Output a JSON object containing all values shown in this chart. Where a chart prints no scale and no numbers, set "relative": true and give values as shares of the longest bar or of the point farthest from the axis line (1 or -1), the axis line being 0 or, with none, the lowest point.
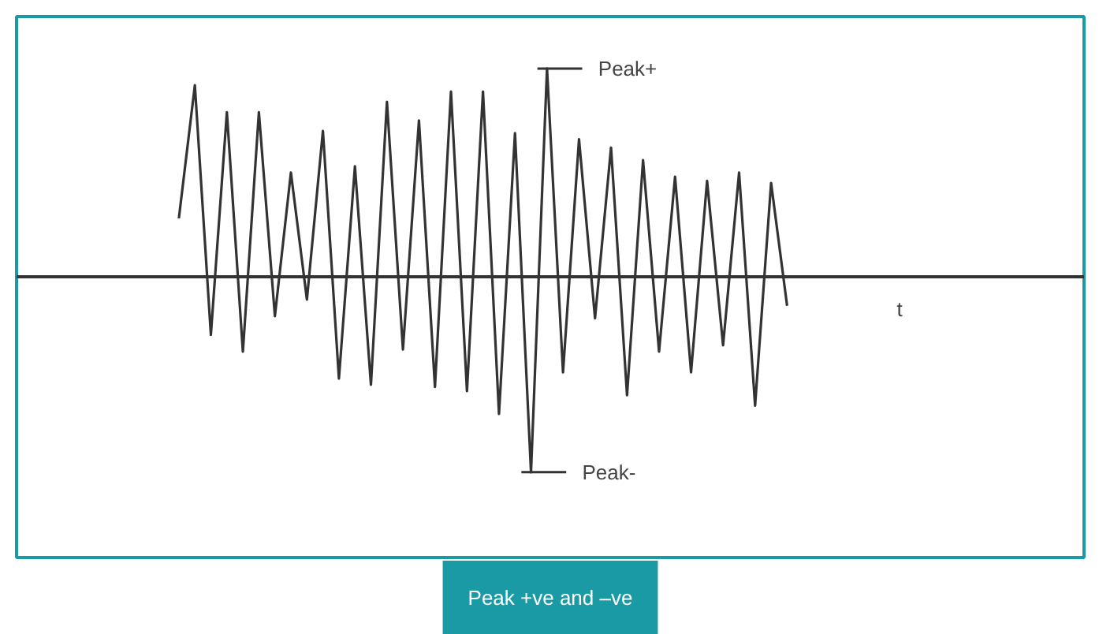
{
  "chart_data": {
    "type": "line",
    "relative": true,
    "title": "Peak +ve and –ve",
    "categories": [
      null,
      null,
      null,
      null,
      null,
      null,
      null,
      null,
      null,
      null,
      null,
      null,
      null,
      null,
      null,
      null,
      null,
      null,
      null,
      null,
      null,
      null,
      null,
      null,
      null,
      null,
      null,
      null,
      null,
      null,
      null,
      null,
      null,
      null,
      null,
      null,
      null,
      null,
      null
    ],
    "series": [
      {
        "color": "#333333",
        "values": [
          0.28,
          0.92,
          -0.28,
          0.79,
          -0.36,
          0.79,
          -0.19,
          0.5,
          -0.11,
          0.7,
          -0.49,
          0.53,
          -0.52,
          0.84,
          -0.35,
          0.75,
          -0.53,
          0.89,
          -0.55,
          0.89,
          -0.66,
          0.69,
          -0.94,
          1,
          -0.46,
          0.66,
          -0.2,
          0.62,
          -0.57,
          0.56,
          -0.36,
          0.48,
          -0.46,
          0.46,
          -0.33,
          0.5,
          -0.62,
          0.45,
          -0.14
        ]
      }
    ],
    "annotations": [
      "Peak+",
      "Peak-",
      "t"
    ],
    "grid": false,
    "marker": "none",
    "line_style": "solid"
  }
}
